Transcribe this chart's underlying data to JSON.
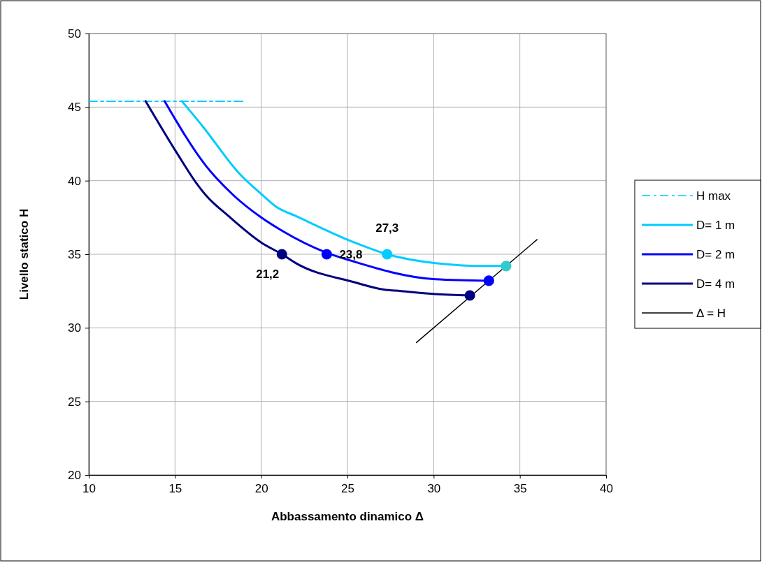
{
  "chart_data": {
    "type": "line",
    "xlabel": "Abbassamento dinamico Δ",
    "ylabel": "Livello statico H",
    "xlim": [
      10,
      40
    ],
    "xticks": [
      10,
      15,
      20,
      25,
      30,
      35,
      40
    ],
    "ylim": [
      20,
      50
    ],
    "yticks": [
      20,
      25,
      30,
      35,
      40,
      45,
      50
    ],
    "grid": true,
    "legend": "right",
    "marker": "none",
    "series": [
      {
        "name": "H max",
        "color": "#00ccff",
        "line_style": "dashed",
        "x": [
          10,
          19.0
        ],
        "values": [
          45.4,
          45.4
        ]
      },
      {
        "name": "D= 1 m",
        "color": "#00ccff",
        "x": [
          15.4,
          16.6,
          18.8,
          20.0,
          20.9,
          22.0,
          25.4,
          27.3,
          30.1,
          33.2,
          34.2
        ],
        "values": [
          45.4,
          43.7,
          40.4,
          39.1,
          38.2,
          37.6,
          35.8,
          35.0,
          34.4,
          34.2,
          34.2
        ]
      },
      {
        "name": "D= 2 m",
        "color": "#0000ff",
        "x": [
          14.4,
          16.8,
          18.4,
          20.0,
          21.2,
          23.8,
          25.1,
          30.1,
          33.2
        ],
        "values": [
          45.4,
          41.0,
          39.0,
          37.5,
          36.6,
          35.1,
          34.6,
          33.3,
          33.2
        ]
      },
      {
        "name": "D= 4 m",
        "color": "#000080",
        "x": [
          13.3,
          15.1,
          16.2,
          16.8,
          18.1,
          20.0,
          21.2,
          22.0,
          25.4,
          27.1,
          28.1,
          30.1,
          32.1
        ],
        "values": [
          45.4,
          41.9,
          39.9,
          39.0,
          37.6,
          35.8,
          35.0,
          34.4,
          33.1,
          32.6,
          32.5,
          32.3,
          32.2
        ]
      },
      {
        "name": "Δ = H",
        "color": "#000000",
        "x": [
          29.0,
          36.0
        ],
        "values": [
          29.0,
          36.0
        ]
      },
      {
        "type": "scatter",
        "marker": "circle",
        "x": [
          27.3,
          23.8,
          21.2,
          34.2,
          33.2,
          32.1
        ],
        "values": [
          35.0,
          35.0,
          35.0,
          34.2,
          33.2,
          32.2
        ],
        "colors": [
          "#00ccff",
          "#0000ff",
          "#000080",
          "#33cccc",
          "#0000ff",
          "#000080"
        ]
      }
    ],
    "annotations": [
      {
        "text": "27,3",
        "x": 27.3,
        "y": 35.0
      },
      {
        "text": "23,8",
        "x": 23.8,
        "y": 35.0
      },
      {
        "text": "21,2",
        "x": 21.2,
        "y": 35.0
      }
    ]
  }
}
